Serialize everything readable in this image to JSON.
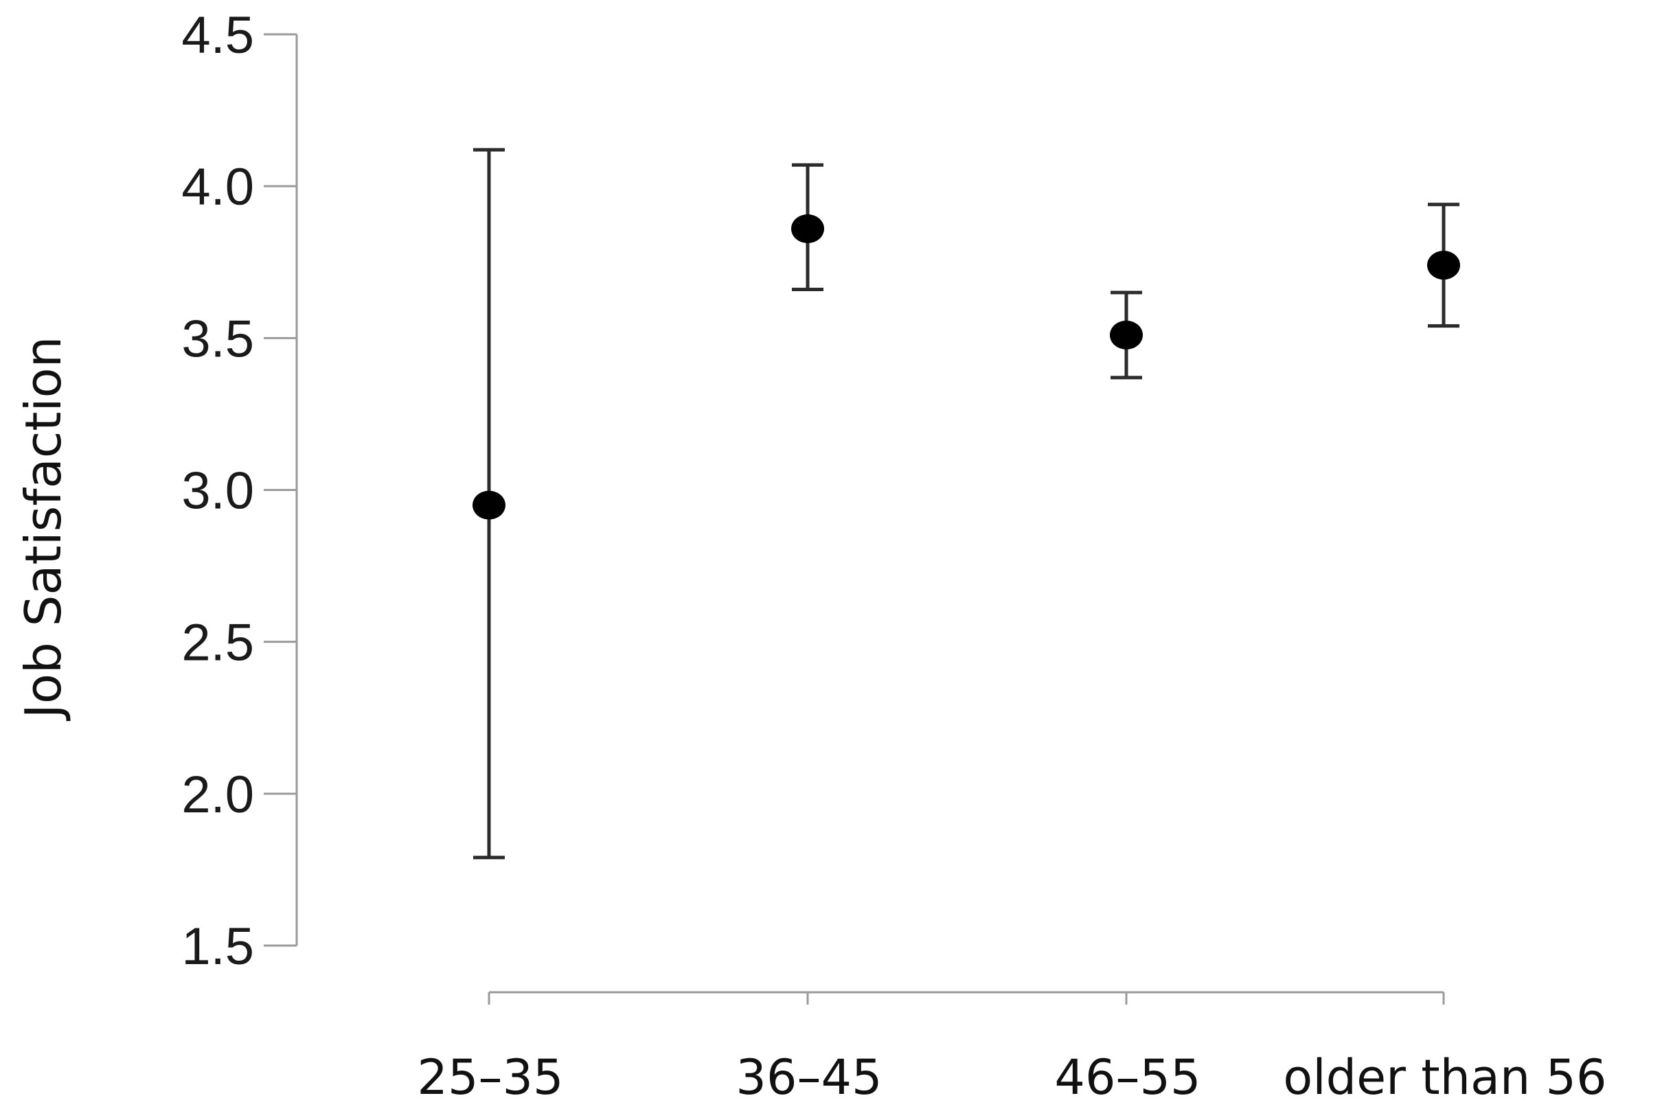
{
  "chart_data": {
    "type": "scatter",
    "title": "",
    "xlabel": "",
    "ylabel": "Job Satisfaction",
    "categories": [
      "25–35",
      "36–45",
      "46–55",
      "older than 56"
    ],
    "ylim": [
      1.5,
      4.5
    ],
    "yticks": [
      "1.5",
      "2.0",
      "2.5",
      "3.0",
      "3.5",
      "4.0",
      "4.5"
    ],
    "series": [
      {
        "values": [
          2.95,
          3.86,
          3.51,
          3.74
        ],
        "error_low": [
          1.79,
          3.66,
          3.37,
          3.54
        ],
        "error_high": [
          4.12,
          4.07,
          3.65,
          3.94
        ]
      }
    ],
    "grid": false,
    "legend": "none",
    "colors": {
      "marker": "#000000",
      "errorbar": "#2b2b2b",
      "axis": "#9a9a9a"
    }
  }
}
